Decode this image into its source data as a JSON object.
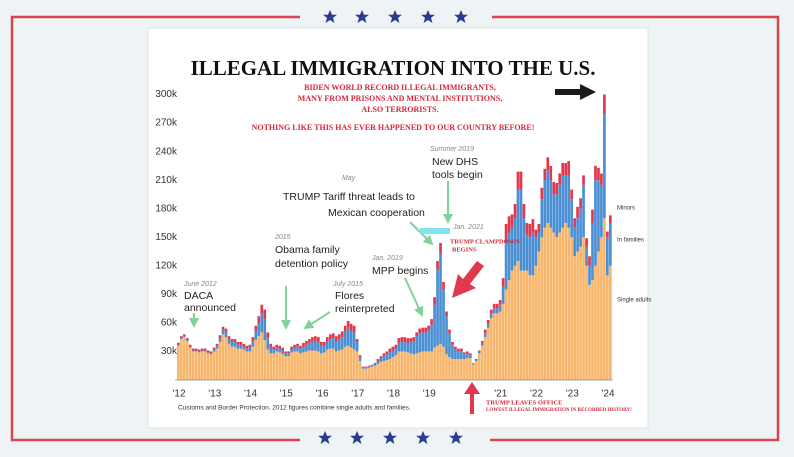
{
  "chart_data": {
    "type": "bar",
    "stacked": true,
    "title": "ILLEGAL IMMIGRATION INTO THE U.S.",
    "subtitle": [
      "BIDEN WORLD RECORD ILLEGAL IMMIGRANTS,",
      "MANY FROM PRISONS AND MENTAL INSTITUTIONS,",
      "ALSO TERRORISTS.",
      "NOTHING LIKE THIS HAS EVER HAPPENED TO OUR COUNTRY BEFORE!"
    ],
    "source": "Customs and Border Protection. 2012 figures combine single adults and families.",
    "annotations": [
      "June 2012",
      "DACA",
      "announced",
      "2015",
      "Obama family",
      "detention policy",
      "July 2015",
      "Flores",
      "reinterpreted",
      "May",
      "TRUMP Tariff threat leads to",
      "Mexican cooperation",
      "Jan. 2019",
      "MPP begins",
      "Summer 2019",
      "New DHS",
      "tools begin",
      "Jan. 2021",
      "TRUMP CLAMPDOWN",
      "BEGINS",
      "TRUMP LEAVES OFFICE",
      "LOWEST ILLEGAL IMMIGRATION IN RECORDED HISTORY!"
    ],
    "legend": "right",
    "ylim": [
      0,
      310
    ],
    "yticks": [
      {
        "value": 30,
        "label": "30k"
      },
      {
        "value": 60,
        "label": "60k"
      },
      {
        "value": 90,
        "label": "90k"
      },
      {
        "value": 120,
        "label": "120k"
      },
      {
        "value": 150,
        "label": "150k"
      },
      {
        "value": 180,
        "label": "180k"
      },
      {
        "value": 210,
        "label": "210k"
      },
      {
        "value": 240,
        "label": "240k"
      },
      {
        "value": 270,
        "label": "270k"
      },
      {
        "value": 300,
        "label": "300k"
      }
    ],
    "categories": [
      "'12",
      null,
      null,
      null,
      null,
      null,
      null,
      null,
      null,
      null,
      null,
      null,
      "'13",
      null,
      null,
      null,
      null,
      null,
      null,
      null,
      null,
      null,
      null,
      null,
      "'14",
      null,
      null,
      null,
      null,
      null,
      null,
      null,
      null,
      null,
      null,
      null,
      "'15",
      null,
      null,
      null,
      null,
      null,
      null,
      null,
      null,
      null,
      null,
      null,
      "'16",
      null,
      null,
      null,
      null,
      null,
      null,
      null,
      null,
      null,
      null,
      null,
      "'17",
      null,
      null,
      null,
      null,
      null,
      null,
      null,
      null,
      null,
      null,
      null,
      "'18",
      null,
      null,
      null,
      null,
      null,
      null,
      null,
      null,
      null,
      null,
      null,
      "'19",
      null,
      null,
      null,
      null,
      null,
      null,
      null,
      null,
      null,
      null,
      null,
      null,
      null,
      null,
      null,
      null,
      null,
      null,
      null,
      null,
      null,
      null,
      null,
      "'21",
      null,
      null,
      null,
      null,
      null,
      null,
      null,
      null,
      null,
      null,
      null,
      "'22",
      null,
      null,
      null,
      null,
      null,
      null,
      null,
      null,
      null,
      null,
      null,
      "'23",
      null,
      null,
      null,
      null,
      null,
      null,
      null,
      null,
      null,
      null,
      null,
      "'24",
      null
    ],
    "series": [
      {
        "name": "Single adults",
        "color": "#f8b66c",
        "values": [
          36,
          43,
          45,
          41,
          34,
          30,
          30,
          29,
          30,
          30,
          28,
          27,
          30,
          33,
          40,
          48,
          45,
          38,
          35,
          35,
          33,
          33,
          32,
          30,
          30,
          35,
          42,
          46,
          50,
          42,
          32,
          28,
          28,
          30,
          29,
          27,
          25,
          25,
          29,
          30,
          30,
          28,
          29,
          30,
          31,
          31,
          31,
          30,
          28,
          29,
          32,
          33,
          33,
          30,
          31,
          32,
          35,
          36,
          34,
          32,
          30,
          20,
          12,
          12,
          13,
          14,
          15,
          17,
          19,
          20,
          21,
          22,
          24,
          26,
          30,
          30,
          30,
          29,
          28,
          27,
          28,
          29,
          30,
          30,
          30,
          30,
          34,
          36,
          38,
          35,
          27,
          24,
          22,
          22,
          22,
          22,
          22,
          23,
          23,
          16,
          20,
          28,
          36,
          45,
          55,
          65,
          70,
          70,
          72,
          80,
          95,
          105,
          115,
          120,
          125,
          115,
          115,
          115,
          110,
          110,
          120,
          135,
          150,
          160,
          165,
          160,
          155,
          150,
          155,
          160,
          165,
          160,
          150,
          130,
          135,
          140,
          150,
          120,
          100,
          105,
          120,
          135,
          150,
          170,
          110,
          120
        ]
      },
      {
        "name": "In families",
        "color": "#4b8fd3",
        "values": [
          1,
          1,
          1,
          1,
          1,
          1,
          1,
          1,
          1,
          1,
          1,
          1,
          2,
          3,
          4,
          5,
          6,
          5,
          5,
          5,
          4,
          4,
          3,
          3,
          4,
          6,
          10,
          14,
          20,
          22,
          12,
          6,
          4,
          4,
          4,
          4,
          3,
          3,
          3,
          4,
          5,
          5,
          6,
          7,
          8,
          9,
          10,
          10,
          8,
          7,
          9,
          10,
          11,
          11,
          12,
          13,
          16,
          19,
          18,
          18,
          10,
          4,
          1,
          1,
          1,
          1,
          2,
          3,
          4,
          5,
          6,
          7,
          7,
          7,
          9,
          10,
          10,
          10,
          12,
          14,
          18,
          20,
          20,
          20,
          22,
          28,
          45,
          80,
          95,
          60,
          40,
          25,
          15,
          10,
          8,
          8,
          5,
          5,
          3,
          0.5,
          1,
          2,
          3,
          4,
          4,
          5,
          5,
          5,
          7,
          18,
          50,
          50,
          45,
          50,
          75,
          85,
          55,
          38,
          40,
          45,
          30,
          20,
          40,
          50,
          55,
          50,
          40,
          45,
          50,
          55,
          50,
          55,
          40,
          30,
          35,
          40,
          55,
          20,
          20,
          60,
          90,
          75,
          55,
          110,
          40,
          45
        ]
      },
      {
        "name": "Minors",
        "color": "#e0384c",
        "values": [
          2,
          2,
          2,
          2,
          2,
          2,
          2,
          2,
          2,
          2,
          2,
          2,
          2,
          2,
          3,
          3,
          3,
          3,
          3,
          3,
          3,
          3,
          3,
          3,
          3,
          4,
          5,
          7,
          9,
          10,
          6,
          4,
          3,
          3,
          3,
          3,
          2,
          2,
          3,
          3,
          3,
          3,
          4,
          4,
          4,
          5,
          5,
          5,
          4,
          4,
          4,
          5,
          5,
          5,
          5,
          6,
          6,
          7,
          7,
          7,
          3,
          2,
          1,
          1,
          1,
          1,
          1,
          2,
          2,
          3,
          3,
          4,
          4,
          4,
          5,
          5,
          5,
          5,
          4,
          4,
          4,
          5,
          5,
          5,
          5,
          6,
          8,
          9,
          11,
          8,
          5,
          4,
          3,
          3,
          3,
          3,
          2,
          2,
          2,
          1,
          1,
          1,
          2,
          4,
          4,
          4,
          5,
          5,
          5,
          9,
          19,
          17,
          14,
          15,
          19,
          19,
          15,
          12,
          14,
          14,
          8,
          9,
          12,
          12,
          14,
          15,
          13,
          12,
          12,
          13,
          13,
          15,
          10,
          10,
          12,
          11,
          10,
          9,
          10,
          14,
          15,
          13,
          12,
          20,
          6,
          8
        ]
      }
    ]
  }
}
